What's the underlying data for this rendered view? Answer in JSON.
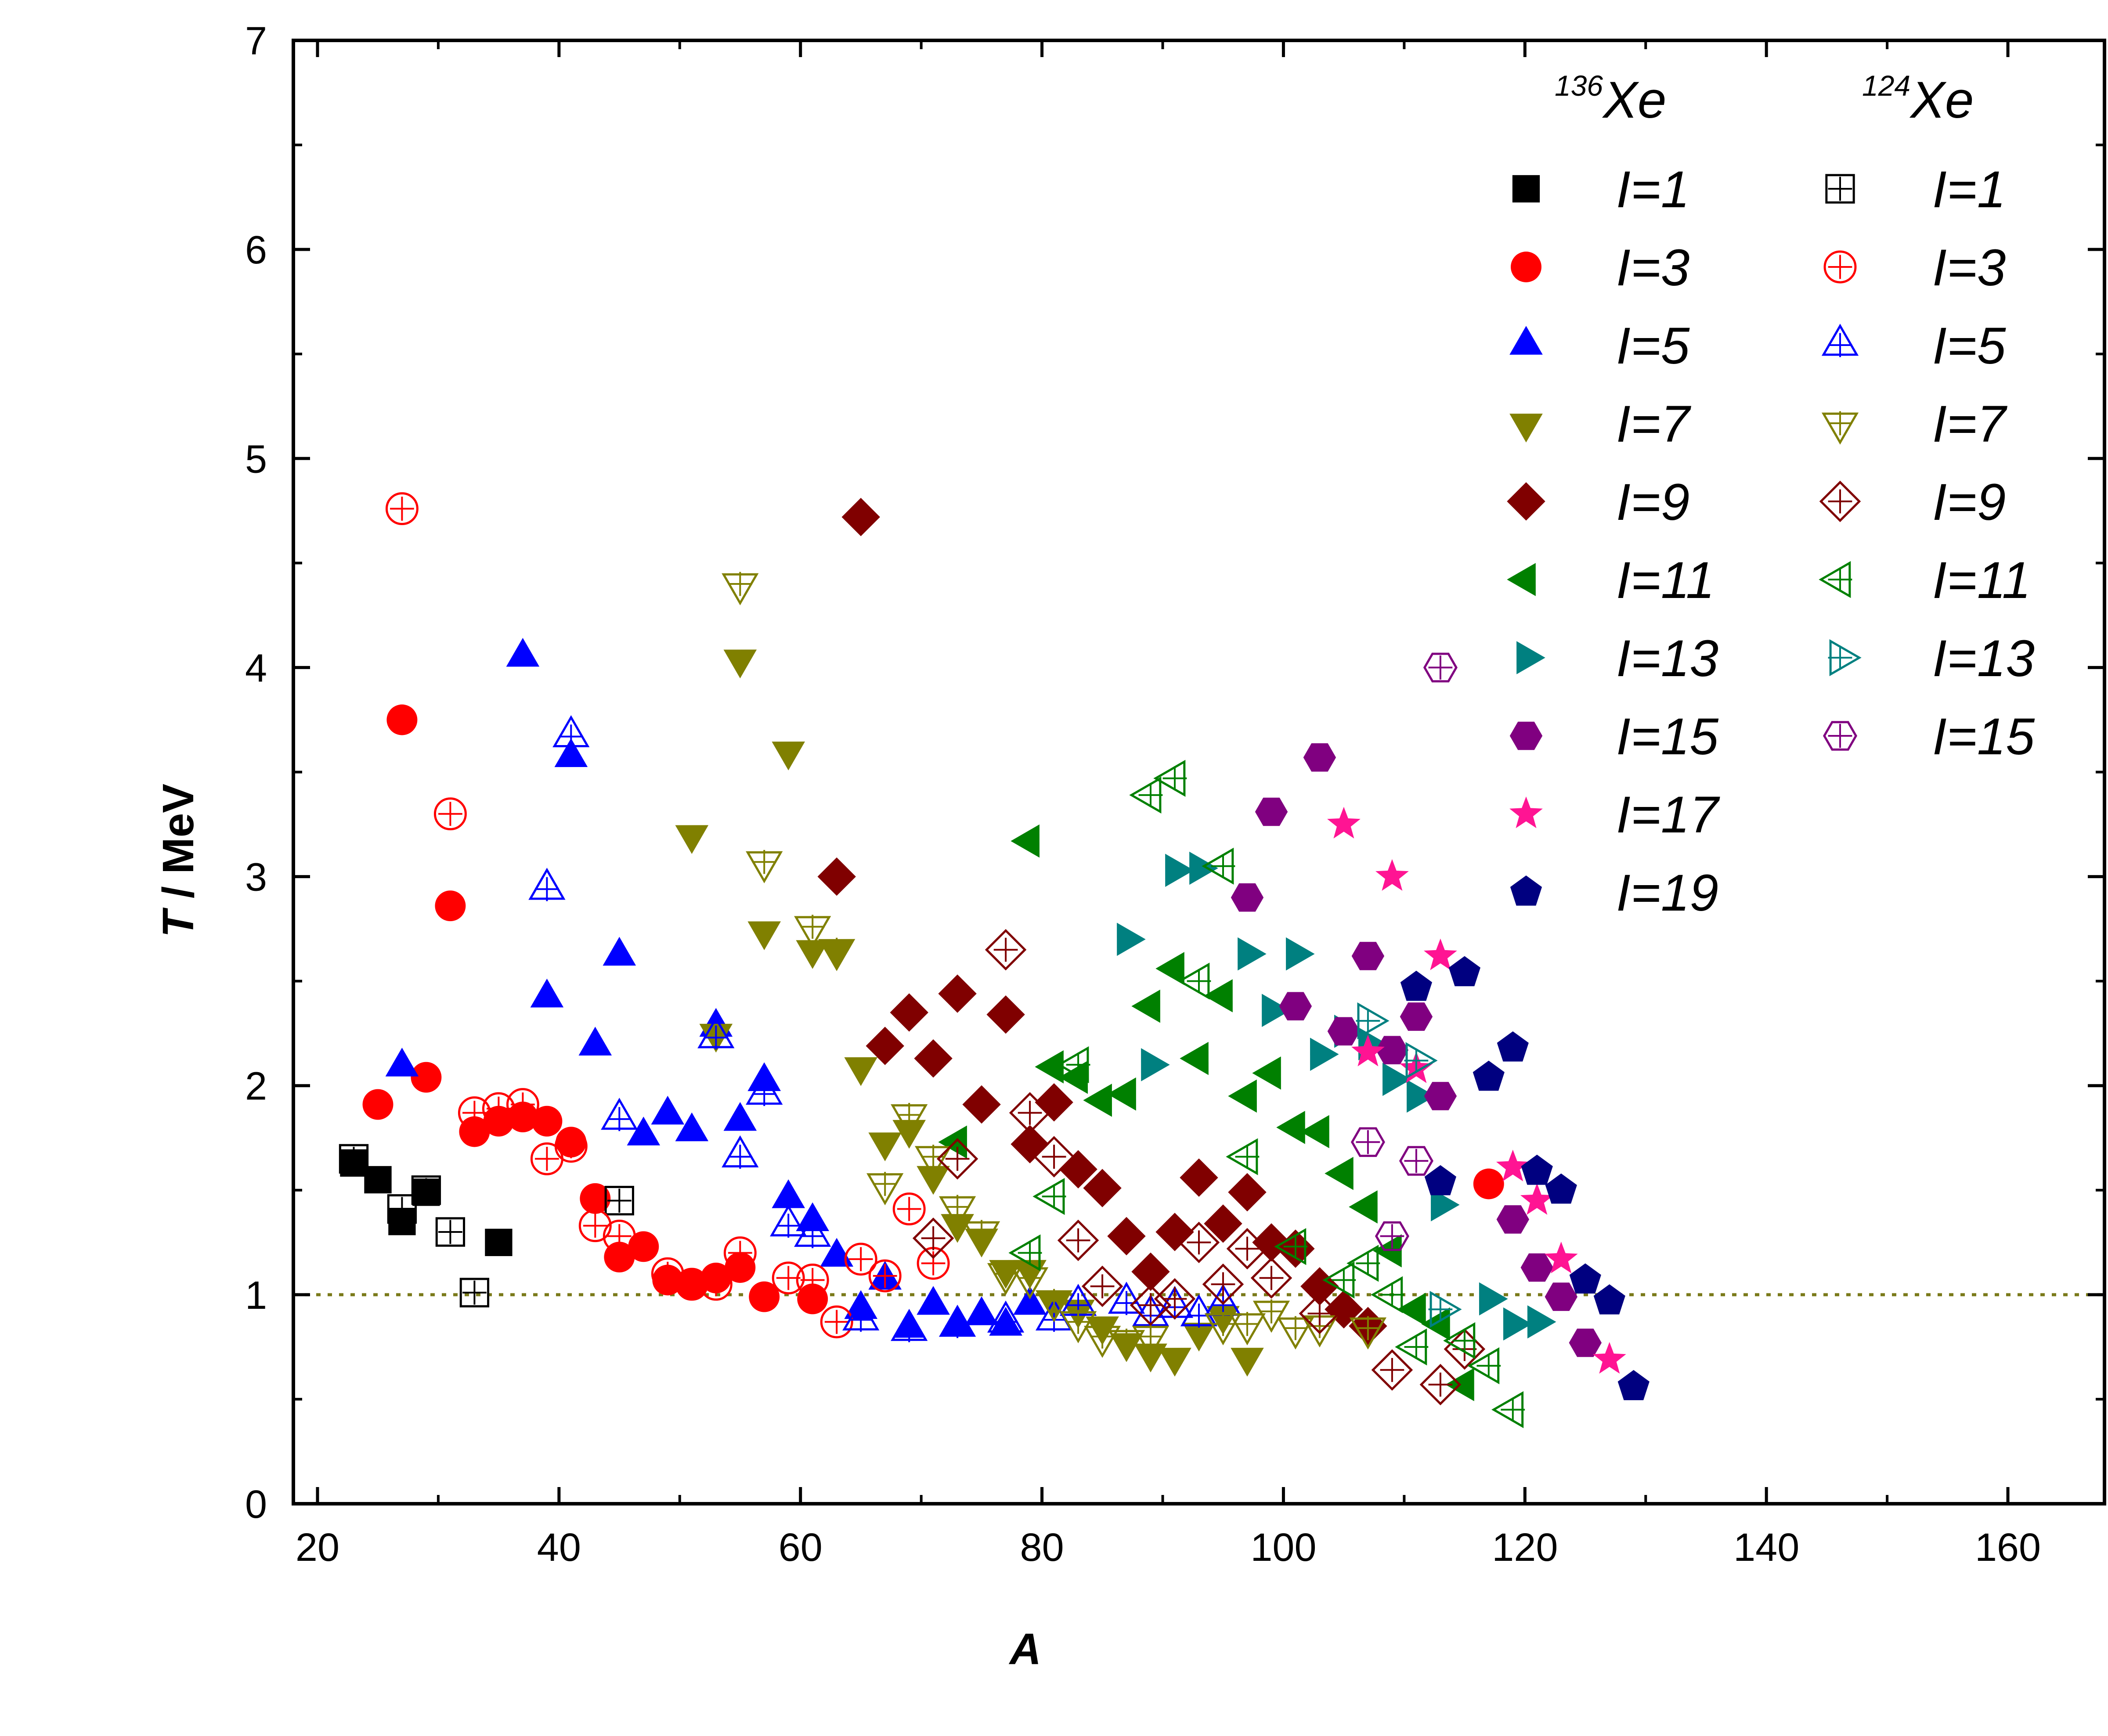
{
  "chart_data": {
    "type": "scatter",
    "xlabel": "A",
    "ylabel": "T / MeV",
    "xlim": [
      18,
      168
    ],
    "ylim": [
      0,
      7
    ],
    "xticks": [
      20,
      40,
      60,
      80,
      100,
      120,
      140,
      160
    ],
    "yticks": [
      0,
      1,
      2,
      3,
      4,
      5,
      6,
      7
    ],
    "reference_line": {
      "y": 1,
      "style": "dotted",
      "color": "#7a7a1a"
    },
    "legend": {
      "placement": "top-right",
      "columns": [
        {
          "mass": "136",
          "element": "Xe"
        },
        {
          "mass": "124",
          "element": "Xe"
        }
      ]
    },
    "series": [
      {
        "name": "I=1",
        "target": "136Xe",
        "marker": "square",
        "filled": true,
        "color": "#000000",
        "x": [
          23,
          25,
          27,
          29,
          35
        ],
        "y": [
          1.63,
          1.55,
          1.35,
          1.49,
          1.25
        ]
      },
      {
        "name": "I=3",
        "target": "136Xe",
        "marker": "circle",
        "filled": true,
        "color": "#ff0000",
        "x": [
          25,
          27,
          29,
          31,
          33,
          35,
          37,
          39,
          41,
          43,
          45,
          47,
          49,
          51,
          53,
          55,
          57,
          61,
          117
        ],
        "y": [
          1.91,
          3.75,
          2.04,
          2.86,
          1.78,
          1.83,
          1.85,
          1.83,
          1.73,
          1.46,
          1.18,
          1.23,
          1.07,
          1.05,
          1.08,
          1.13,
          0.99,
          0.98,
          1.53
        ]
      },
      {
        "name": "I=5",
        "target": "136Xe",
        "marker": "triangle-up",
        "filled": true,
        "color": "#0000ff",
        "x": [
          27,
          37,
          39,
          41,
          43,
          45,
          47,
          49,
          51,
          53,
          55,
          57,
          59,
          61,
          63,
          65,
          67,
          69,
          71,
          73,
          75,
          77,
          79
        ],
        "y": [
          2.09,
          4.05,
          2.42,
          3.57,
          2.19,
          2.62,
          1.76,
          1.86,
          1.78,
          2.28,
          1.83,
          2.02,
          1.46,
          1.35,
          1.18,
          0.93,
          1.07,
          0.84,
          0.95,
          0.85,
          0.9,
          0.85,
          0.95
        ]
      },
      {
        "name": "I=7",
        "target": "136Xe",
        "marker": "triangle-down",
        "filled": true,
        "color": "#808000",
        "x": [
          51,
          53,
          55,
          57,
          59,
          61,
          63,
          65,
          67,
          69,
          71,
          73,
          75,
          77,
          79,
          81,
          83,
          85,
          87,
          89,
          91,
          93,
          95,
          97
        ],
        "y": [
          3.2,
          2.25,
          4.04,
          2.74,
          3.6,
          2.65,
          2.65,
          2.09,
          1.73,
          1.79,
          1.57,
          1.34,
          1.27,
          1.12,
          1.12,
          0.97,
          0.93,
          0.85,
          0.77,
          0.72,
          0.7,
          0.82,
          0.9,
          0.7
        ]
      },
      {
        "name": "I=9",
        "target": "136Xe",
        "marker": "diamond",
        "filled": true,
        "color": "#800000",
        "x": [
          63,
          65,
          67,
          69,
          71,
          73,
          75,
          77,
          79,
          81,
          83,
          85,
          87,
          89,
          91,
          93,
          95,
          97,
          99,
          101,
          103,
          105,
          107
        ],
        "y": [
          3.0,
          4.72,
          2.19,
          2.35,
          2.13,
          2.44,
          1.91,
          2.34,
          1.72,
          1.92,
          1.6,
          1.51,
          1.28,
          1.11,
          1.3,
          1.56,
          1.34,
          1.49,
          1.25,
          1.22,
          1.04,
          0.93,
          0.85
        ]
      },
      {
        "name": "I=11",
        "target": "136Xe",
        "marker": "triangle-left",
        "filled": true,
        "color": "#008000",
        "x": [
          73,
          79,
          81,
          83,
          85,
          87,
          89,
          91,
          93,
          95,
          97,
          99,
          101,
          103,
          105,
          107,
          109,
          111,
          113,
          115
        ],
        "y": [
          1.73,
          3.17,
          2.09,
          2.04,
          1.93,
          1.96,
          2.38,
          2.56,
          2.13,
          2.43,
          1.95,
          2.06,
          1.8,
          1.78,
          1.58,
          1.42,
          1.21,
          0.93,
          0.86,
          0.57
        ]
      },
      {
        "name": "I=13",
        "target": "136Xe",
        "marker": "triangle-right",
        "filled": true,
        "color": "#008080",
        "x": [
          87,
          89,
          91,
          93,
          97,
          99,
          101,
          103,
          105,
          107,
          109,
          111,
          113,
          117,
          119,
          121
        ],
        "y": [
          2.7,
          2.1,
          3.03,
          3.04,
          2.63,
          2.36,
          2.63,
          2.15,
          2.26,
          2.2,
          2.03,
          1.95,
          1.43,
          0.98,
          0.86,
          0.87
        ]
      },
      {
        "name": "I=15",
        "target": "136Xe",
        "marker": "hexagon",
        "filled": true,
        "color": "#800080",
        "x": [
          97,
          99,
          101,
          103,
          105,
          107,
          109,
          111,
          113,
          119,
          121,
          123,
          125
        ],
        "y": [
          2.9,
          3.31,
          2.38,
          3.57,
          2.26,
          2.62,
          2.17,
          2.33,
          1.95,
          1.36,
          1.13,
          0.99,
          0.77
        ]
      },
      {
        "name": "I=17",
        "target": "136Xe",
        "marker": "star",
        "filled": true,
        "color": "#ff1493",
        "x": [
          105,
          107,
          109,
          111,
          113,
          119,
          121,
          123,
          127
        ],
        "y": [
          3.25,
          2.16,
          3.0,
          2.08,
          2.62,
          1.61,
          1.45,
          1.17,
          0.69
        ]
      },
      {
        "name": "I=19",
        "target": "136Xe",
        "marker": "pentagon",
        "filled": true,
        "color": "#000080",
        "x": [
          111,
          113,
          115,
          117,
          119,
          121,
          123,
          125,
          127,
          129
        ],
        "y": [
          2.47,
          1.54,
          2.54,
          2.04,
          2.18,
          1.59,
          1.5,
          1.07,
          0.97,
          0.56
        ]
      },
      {
        "name": "I=1",
        "target": "124Xe",
        "marker": "square",
        "filled": false,
        "color": "#000000",
        "x": [
          23,
          27,
          29,
          31,
          33,
          45
        ],
        "y": [
          1.65,
          1.41,
          1.5,
          1.3,
          1.01,
          1.45
        ]
      },
      {
        "name": "I=3",
        "target": "124Xe",
        "marker": "circle",
        "filled": false,
        "color": "#ff0000",
        "x": [
          27,
          31,
          33,
          35,
          37,
          39,
          41,
          43,
          45,
          49,
          51,
          53,
          55,
          59,
          61,
          63,
          65,
          67,
          69,
          71
        ],
        "y": [
          4.76,
          3.3,
          1.87,
          1.89,
          1.91,
          1.65,
          1.71,
          1.33,
          1.28,
          1.1,
          1.05,
          1.05,
          1.2,
          1.08,
          1.07,
          0.87,
          1.17,
          1.09,
          1.41,
          1.15
        ]
      },
      {
        "name": "I=5",
        "target": "124Xe",
        "marker": "triangle-up",
        "filled": false,
        "color": "#0000ff",
        "x": [
          39,
          41,
          45,
          53,
          55,
          57,
          59,
          61,
          65,
          69,
          73,
          77,
          81,
          83,
          87,
          89,
          91,
          93,
          95
        ],
        "y": [
          2.94,
          3.67,
          1.84,
          2.23,
          1.66,
          1.96,
          1.33,
          1.28,
          0.88,
          0.83,
          0.85,
          0.87,
          0.88,
          0.95,
          0.96,
          0.9,
          0.94,
          0.9,
          0.95
        ]
      },
      {
        "name": "I=7",
        "target": "124Xe",
        "marker": "triangle-down",
        "filled": false,
        "color": "#808000",
        "x": [
          55,
          57,
          61,
          63,
          67,
          69,
          71,
          73,
          75,
          77,
          79,
          81,
          83,
          85,
          87,
          89,
          95,
          97,
          99,
          101,
          103,
          107
        ],
        "y": [
          4.4,
          3.07,
          2.76,
          2.65,
          1.53,
          1.86,
          1.66,
          1.42,
          1.3,
          1.1,
          1.08,
          0.97,
          0.87,
          0.8,
          0.78,
          0.8,
          0.86,
          0.86,
          0.92,
          0.84,
          0.85,
          0.84
        ]
      },
      {
        "name": "I=9",
        "target": "124Xe",
        "marker": "diamond",
        "filled": false,
        "color": "#800000",
        "x": [
          71,
          73,
          77,
          79,
          81,
          83,
          85,
          89,
          91,
          93,
          95,
          97,
          99,
          103,
          109,
          113,
          115
        ],
        "y": [
          1.27,
          1.65,
          2.65,
          1.87,
          1.66,
          1.26,
          1.04,
          0.95,
          0.98,
          1.25,
          1.05,
          1.22,
          1.08,
          0.91,
          0.64,
          0.57,
          0.74
        ]
      },
      {
        "name": "I=11",
        "target": "124Xe",
        "marker": "triangle-left",
        "filled": false,
        "color": "#008000",
        "x": [
          79,
          81,
          83,
          89,
          91,
          93,
          95,
          97,
          101,
          105,
          107,
          109,
          111,
          115,
          117,
          119
        ],
        "y": [
          1.2,
          1.47,
          2.1,
          3.39,
          3.47,
          2.5,
          3.05,
          1.66,
          1.23,
          1.07,
          1.15,
          1.0,
          0.75,
          0.78,
          0.66,
          0.45
        ]
      },
      {
        "name": "I=13",
        "target": "124Xe",
        "marker": "triangle-right",
        "filled": false,
        "color": "#008080",
        "x": [
          107,
          111,
          113
        ],
        "y": [
          2.31,
          2.12,
          0.93
        ]
      },
      {
        "name": "I=15",
        "target": "124Xe",
        "marker": "circle-plus",
        "filled": false,
        "color": "#800080",
        "x": [
          107,
          109,
          111,
          113
        ],
        "y": [
          1.73,
          1.28,
          1.64,
          4.0
        ]
      }
    ]
  }
}
